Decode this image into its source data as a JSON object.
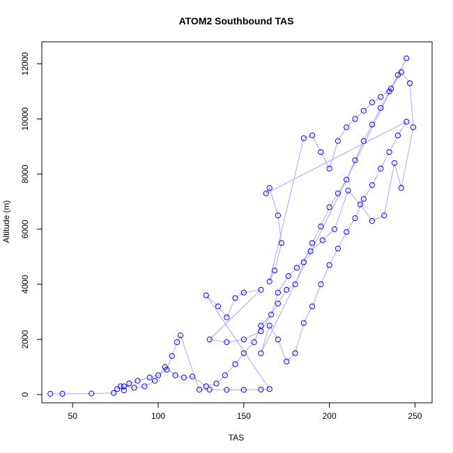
{
  "chart_data": {
    "type": "scatter",
    "title": "ATOM2 Southbound TAS",
    "xlabel": "TAS",
    "ylabel": "Altitude (m)",
    "xlim": [
      32,
      260
    ],
    "ylim": [
      -300,
      12800
    ],
    "xticks": [
      50,
      100,
      150,
      200,
      250
    ],
    "yticks": [
      0,
      2000,
      4000,
      6000,
      8000,
      10000,
      12000
    ],
    "grid": false,
    "legend": "none",
    "marker": "open-circle",
    "color": "#0000ff",
    "series": [
      {
        "points": [
          [
            37,
            30
          ],
          [
            44,
            30
          ],
          [
            61,
            40
          ],
          [
            74,
            60
          ],
          [
            76,
            200
          ],
          [
            78,
            300
          ],
          [
            80,
            150
          ],
          [
            83,
            400
          ],
          [
            88,
            500
          ],
          [
            95,
            620
          ],
          [
            100,
            700
          ],
          [
            105,
            900
          ],
          [
            108,
            1400
          ],
          [
            111,
            1900
          ],
          [
            113,
            2150
          ],
          [
            124,
            180
          ],
          [
            130,
            180
          ],
          [
            140,
            170
          ],
          [
            150,
            170
          ],
          [
            160,
            180
          ],
          [
            165,
            200
          ],
          [
            128,
            3600
          ],
          [
            135,
            3200
          ],
          [
            140,
            2800
          ],
          [
            145,
            3500
          ],
          [
            150,
            3700
          ],
          [
            160,
            3800
          ],
          [
            130,
            2000
          ],
          [
            140,
            1900
          ],
          [
            150,
            2000
          ],
          [
            160,
            2300
          ],
          [
            170,
            3300
          ],
          [
            175,
            3800
          ],
          [
            180,
            4000
          ],
          [
            185,
            4800
          ],
          [
            190,
            5500
          ],
          [
            195,
            6100
          ],
          [
            200,
            6800
          ],
          [
            205,
            7300
          ],
          [
            210,
            7800
          ],
          [
            215,
            8500
          ],
          [
            220,
            9200
          ],
          [
            225,
            9800
          ],
          [
            230,
            10400
          ],
          [
            235,
            11000
          ],
          [
            240,
            11600
          ],
          [
            245,
            12200
          ],
          [
            160,
            1500
          ],
          [
            165,
            2500
          ],
          [
            170,
            2000
          ],
          [
            175,
            1200
          ],
          [
            180,
            1500
          ],
          [
            185,
            2600
          ],
          [
            190,
            3200
          ],
          [
            195,
            4000
          ],
          [
            200,
            4700
          ],
          [
            205,
            5300
          ],
          [
            210,
            5900
          ],
          [
            215,
            6400
          ],
          [
            220,
            7100
          ],
          [
            225,
            7600
          ],
          [
            230,
            8200
          ],
          [
            235,
            8800
          ],
          [
            240,
            9400
          ],
          [
            245,
            9900
          ],
          [
            163,
            7300
          ],
          [
            165,
            7500
          ],
          [
            170,
            6500
          ],
          [
            172,
            5500
          ],
          [
            168,
            4500
          ],
          [
            165,
            4100
          ],
          [
            185,
            9300
          ],
          [
            190,
            9400
          ],
          [
            195,
            8800
          ],
          [
            200,
            8200
          ],
          [
            205,
            9200
          ],
          [
            210,
            9700
          ],
          [
            215,
            10000
          ],
          [
            220,
            10300
          ],
          [
            225,
            10600
          ],
          [
            230,
            10800
          ],
          [
            236,
            11100
          ],
          [
            242,
            11700
          ],
          [
            247,
            11300
          ],
          [
            249,
            9700
          ],
          [
            242,
            7500
          ],
          [
            238,
            8400
          ],
          [
            232,
            6500
          ],
          [
            225,
            6300
          ],
          [
            218,
            6900
          ],
          [
            211,
            7400
          ],
          [
            203,
            6000
          ],
          [
            196,
            5600
          ],
          [
            189,
            5200
          ],
          [
            181,
            4600
          ],
          [
            176,
            4300
          ],
          [
            170,
            3700
          ],
          [
            166,
            2900
          ],
          [
            160,
            2500
          ],
          [
            156,
            1900
          ],
          [
            150,
            1500
          ],
          [
            145,
            1100
          ],
          [
            139,
            700
          ],
          [
            134,
            400
          ],
          [
            128,
            300
          ],
          [
            120,
            650
          ],
          [
            115,
            620
          ],
          [
            110,
            700
          ],
          [
            104,
            1000
          ],
          [
            98,
            500
          ],
          [
            92,
            300
          ],
          [
            86,
            250
          ],
          [
            80,
            300
          ]
        ]
      }
    ]
  }
}
